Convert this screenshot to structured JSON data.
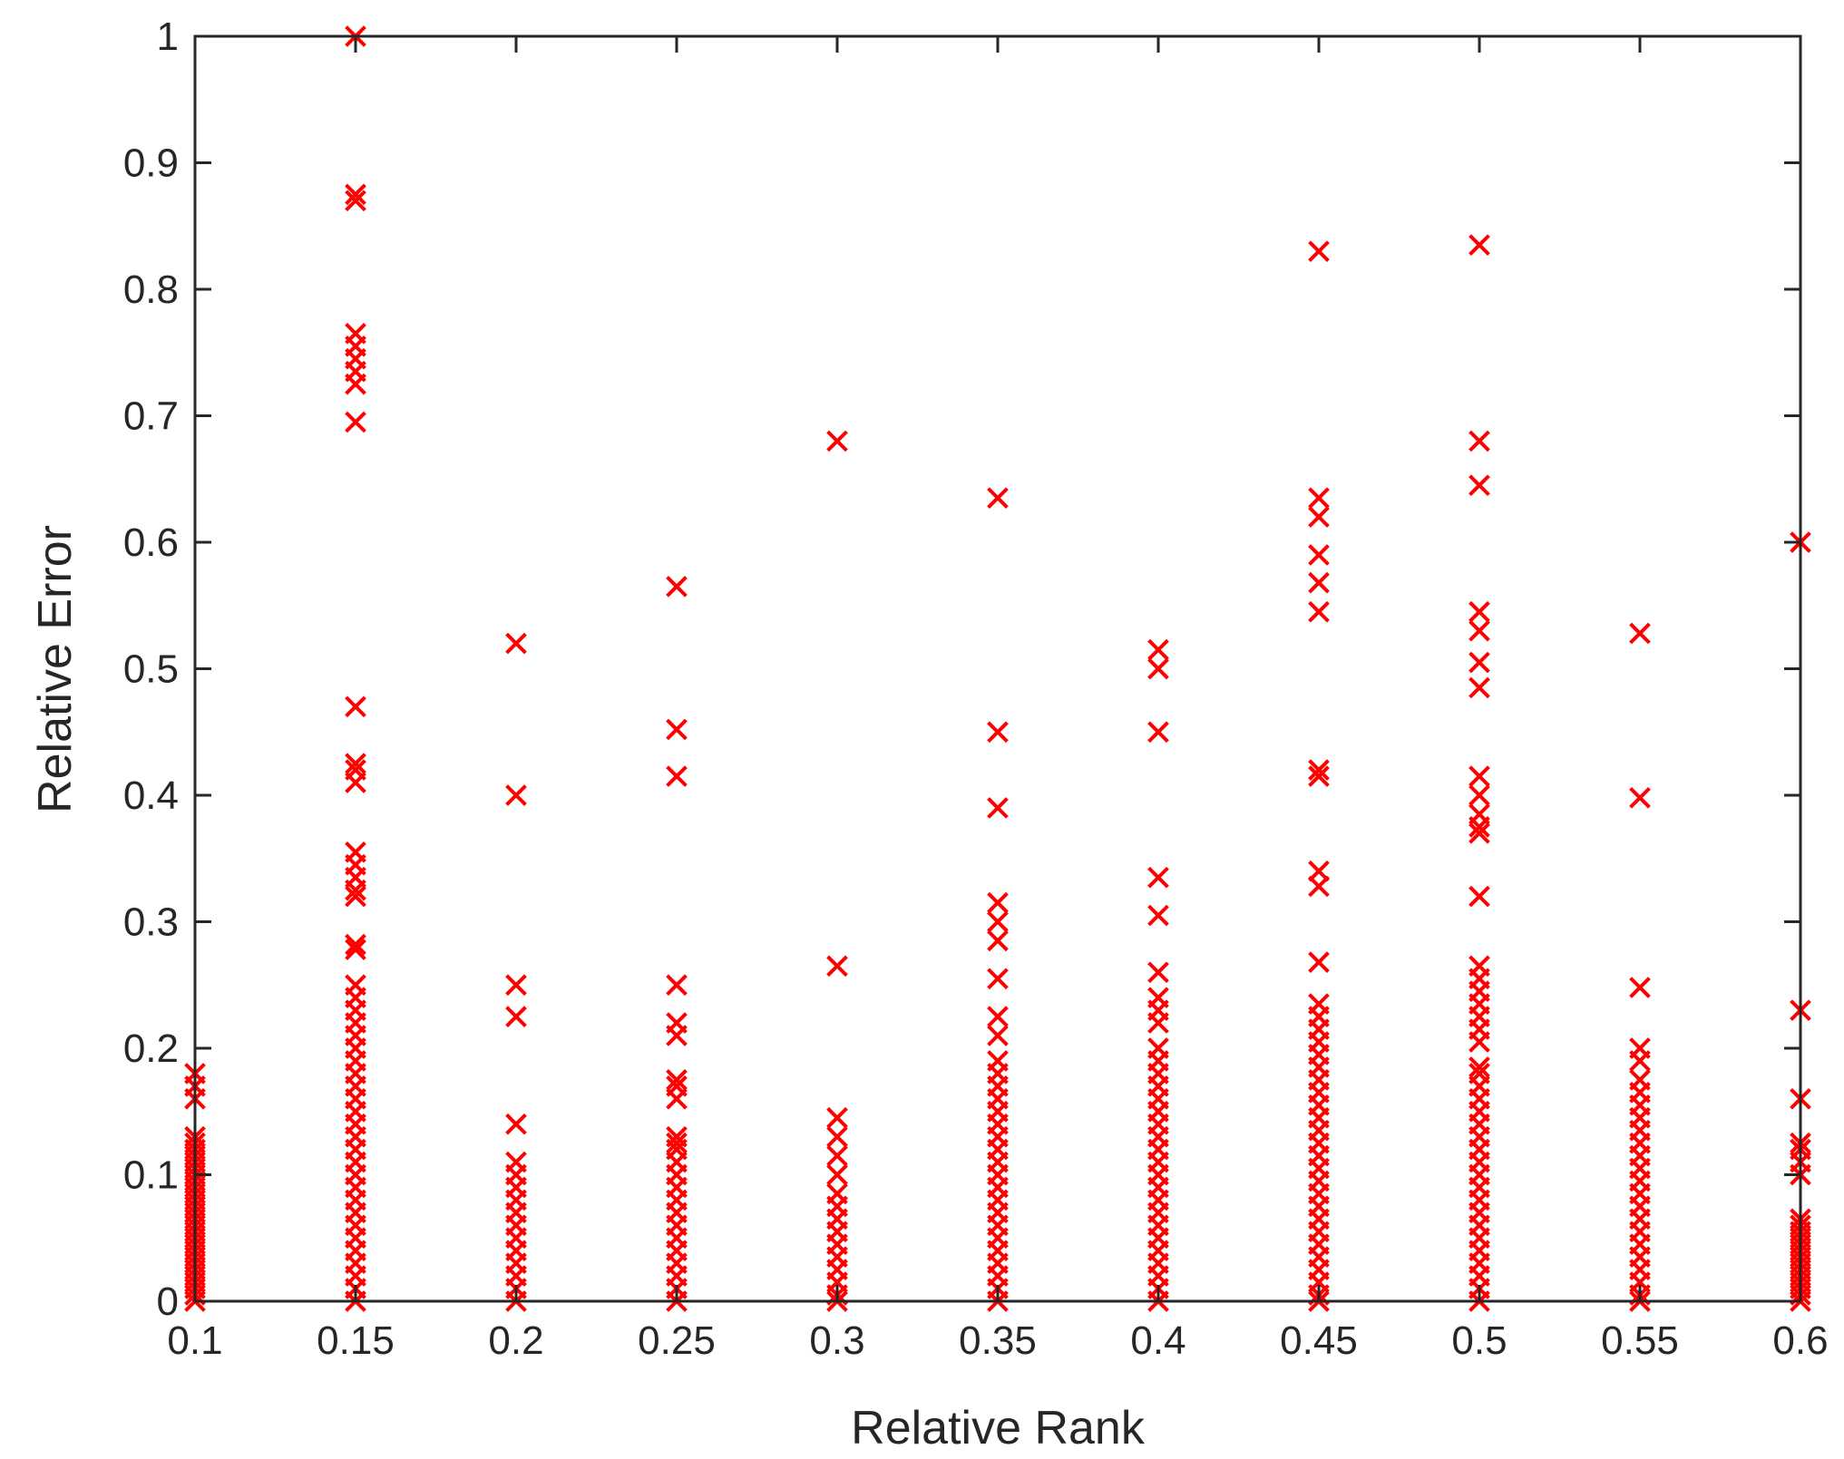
{
  "chart_data": {
    "type": "scatter",
    "xlabel": "Relative Rank",
    "ylabel": "Relative Error",
    "xlim": [
      0.1,
      0.6
    ],
    "ylim": [
      0,
      1
    ],
    "xticks": [
      "0.1",
      "0.15",
      "0.2",
      "0.25",
      "0.3",
      "0.35",
      "0.4",
      "0.45",
      "0.5",
      "0.55",
      "0.6"
    ],
    "yticks": [
      "0",
      "0.1",
      "0.2",
      "0.3",
      "0.4",
      "0.5",
      "0.6",
      "0.7",
      "0.8",
      "0.9",
      "1"
    ],
    "grid": false,
    "marker": "x",
    "color": "#ff0000",
    "series": [
      {
        "x": 0.1,
        "y": [
          0.18,
          0.17,
          0.16,
          0.13,
          0.125,
          0.12,
          0.115,
          0.11,
          0.105,
          0.1,
          0.095,
          0.09,
          0.085,
          0.08,
          0.075,
          0.07,
          0.065,
          0.06,
          0.055,
          0.05,
          0.045,
          0.04,
          0.035,
          0.03,
          0.025,
          0.02,
          0.015,
          0.01,
          0.005,
          0
        ]
      },
      {
        "x": 0.15,
        "y": [
          1.0,
          0.875,
          0.87,
          0.765,
          0.755,
          0.745,
          0.735,
          0.725,
          0.695,
          0.47,
          0.425,
          0.42,
          0.41,
          0.355,
          0.345,
          0.335,
          0.325,
          0.32,
          0.282,
          0.278,
          0.25,
          0.24,
          0.23,
          0.22,
          0.21,
          0.2,
          0.19,
          0.18,
          0.17,
          0.16,
          0.15,
          0.14,
          0.13,
          0.12,
          0.11,
          0.1,
          0.09,
          0.08,
          0.07,
          0.06,
          0.05,
          0.04,
          0.03,
          0.02,
          0.01,
          0
        ]
      },
      {
        "x": 0.2,
        "y": [
          0.52,
          0.4,
          0.25,
          0.225,
          0.14,
          0.11,
          0.1,
          0.09,
          0.08,
          0.07,
          0.06,
          0.05,
          0.04,
          0.03,
          0.02,
          0.01,
          0
        ]
      },
      {
        "x": 0.25,
        "y": [
          0.565,
          0.452,
          0.415,
          0.25,
          0.22,
          0.21,
          0.175,
          0.17,
          0.16,
          0.13,
          0.125,
          0.12,
          0.11,
          0.1,
          0.09,
          0.08,
          0.07,
          0.06,
          0.05,
          0.04,
          0.03,
          0.02,
          0.01,
          0
        ]
      },
      {
        "x": 0.3,
        "y": [
          0.68,
          0.265,
          0.145,
          0.13,
          0.115,
          0.1,
          0.085,
          0.075,
          0.065,
          0.055,
          0.045,
          0.035,
          0.025,
          0.015,
          0.005,
          0
        ]
      },
      {
        "x": 0.35,
        "y": [
          0.635,
          0.45,
          0.39,
          0.315,
          0.3,
          0.285,
          0.255,
          0.225,
          0.21,
          0.19,
          0.18,
          0.17,
          0.16,
          0.15,
          0.14,
          0.13,
          0.12,
          0.11,
          0.1,
          0.09,
          0.08,
          0.07,
          0.06,
          0.05,
          0.04,
          0.03,
          0.02,
          0.01,
          0
        ]
      },
      {
        "x": 0.4,
        "y": [
          0.515,
          0.5,
          0.45,
          0.335,
          0.305,
          0.26,
          0.24,
          0.23,
          0.22,
          0.2,
          0.19,
          0.18,
          0.17,
          0.16,
          0.15,
          0.14,
          0.13,
          0.12,
          0.11,
          0.1,
          0.09,
          0.08,
          0.07,
          0.06,
          0.05,
          0.04,
          0.03,
          0.02,
          0.01,
          0
        ]
      },
      {
        "x": 0.45,
        "y": [
          0.83,
          0.635,
          0.62,
          0.59,
          0.568,
          0.545,
          0.42,
          0.415,
          0.34,
          0.328,
          0.268,
          0.235,
          0.225,
          0.215,
          0.205,
          0.195,
          0.185,
          0.175,
          0.165,
          0.155,
          0.145,
          0.135,
          0.125,
          0.115,
          0.105,
          0.095,
          0.085,
          0.075,
          0.065,
          0.055,
          0.045,
          0.035,
          0.025,
          0.015,
          0.005,
          0
        ]
      },
      {
        "x": 0.5,
        "y": [
          0.835,
          0.68,
          0.645,
          0.545,
          0.53,
          0.505,
          0.485,
          0.415,
          0.4,
          0.385,
          0.375,
          0.37,
          0.32,
          0.265,
          0.255,
          0.245,
          0.235,
          0.225,
          0.215,
          0.205,
          0.185,
          0.18,
          0.17,
          0.16,
          0.15,
          0.14,
          0.13,
          0.12,
          0.11,
          0.1,
          0.09,
          0.08,
          0.07,
          0.06,
          0.05,
          0.04,
          0.03,
          0.02,
          0.01,
          0
        ]
      },
      {
        "x": 0.55,
        "y": [
          0.528,
          0.398,
          0.248,
          0.2,
          0.19,
          0.175,
          0.165,
          0.155,
          0.145,
          0.135,
          0.125,
          0.115,
          0.105,
          0.095,
          0.085,
          0.075,
          0.065,
          0.055,
          0.045,
          0.035,
          0.025,
          0.015,
          0.005,
          0
        ]
      },
      {
        "x": 0.6,
        "y": [
          0.6,
          0.23,
          0.16,
          0.125,
          0.12,
          0.11,
          0.1,
          0.065,
          0.06,
          0.055,
          0.05,
          0.045,
          0.04,
          0.035,
          0.03,
          0.025,
          0.02,
          0.015,
          0.01,
          0.005,
          0
        ]
      }
    ]
  }
}
